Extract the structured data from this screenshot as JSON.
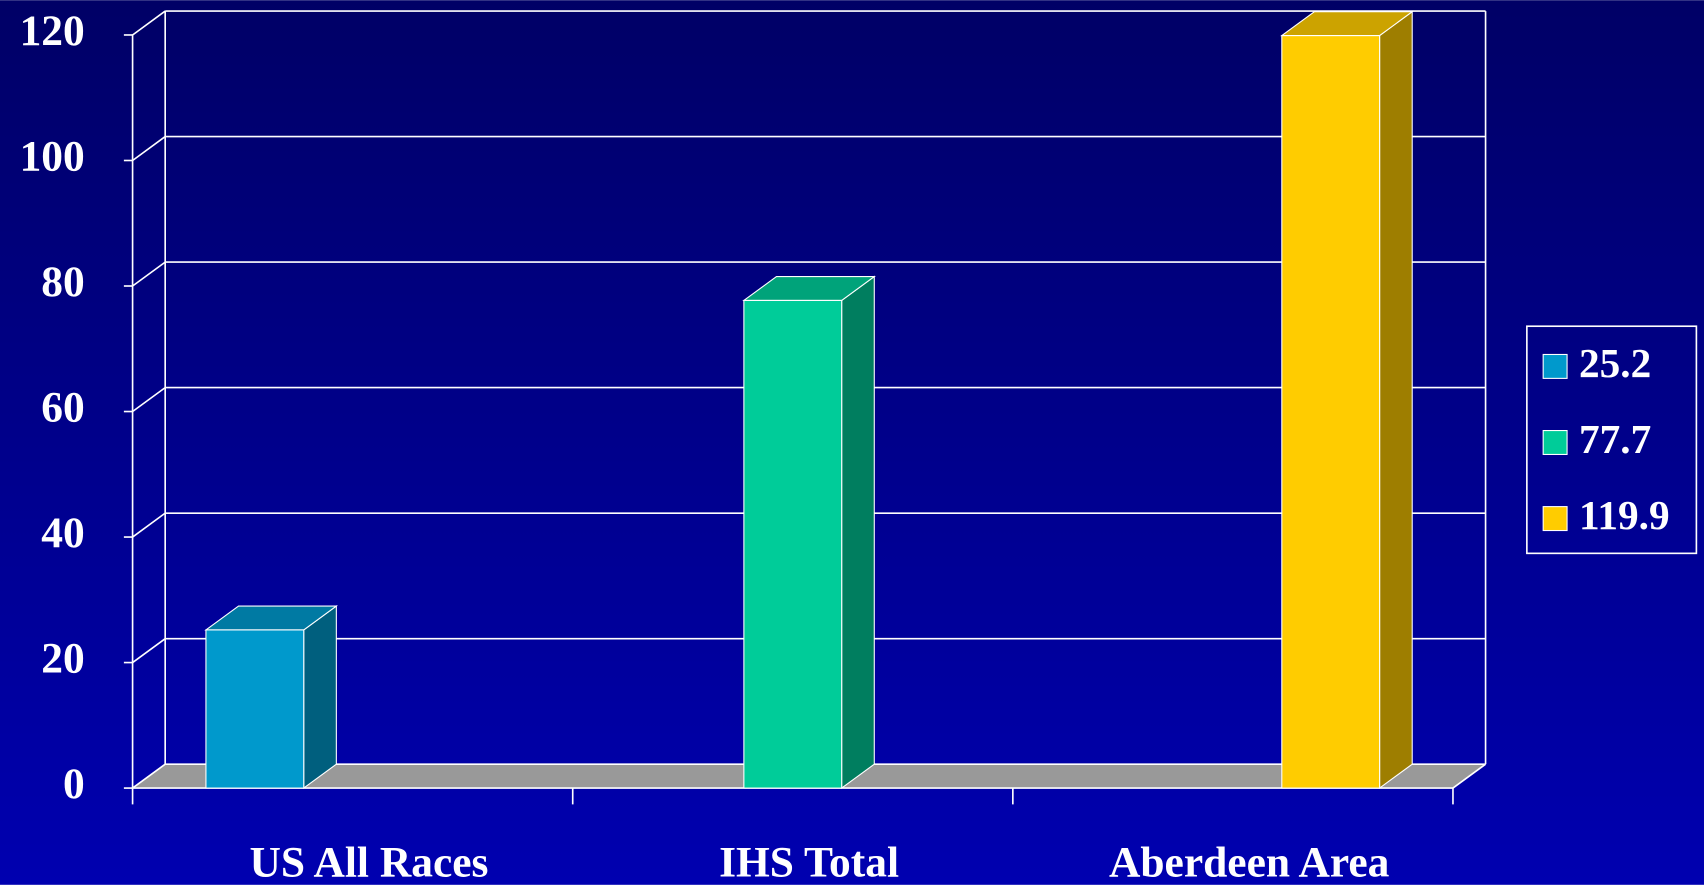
{
  "chart_data": {
    "type": "bar3d",
    "categories": [
      "US All Races",
      "IHS Total",
      "Aberdeen Area"
    ],
    "series": [
      {
        "name": "25.2",
        "color": "#0099cc",
        "values": [
          25.2,
          null,
          null
        ]
      },
      {
        "name": "77.7",
        "color": "#00cc99",
        "values": [
          null,
          77.7,
          null
        ]
      },
      {
        "name": "119.9",
        "color": "#ffcc00",
        "values": [
          null,
          null,
          119.9
        ]
      }
    ],
    "ylim": [
      0,
      120
    ],
    "yticks": [
      0,
      20,
      40,
      60,
      80,
      100,
      120
    ],
    "grid": true,
    "legend": "right"
  }
}
